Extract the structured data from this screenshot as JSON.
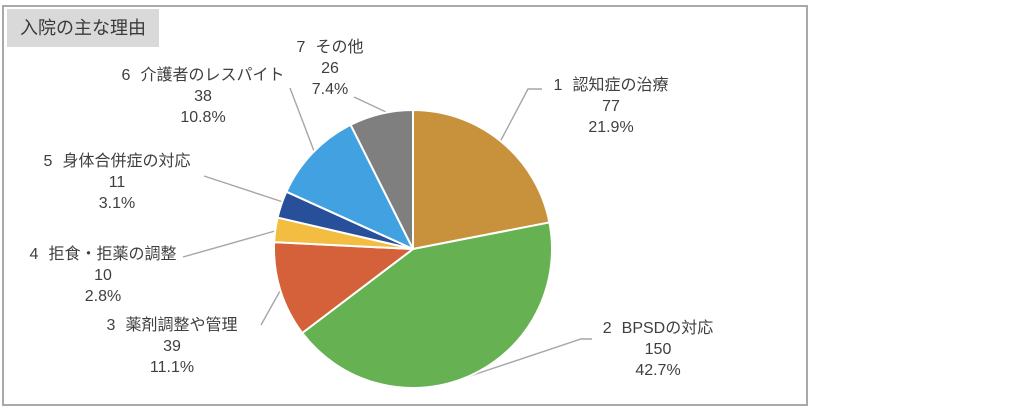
{
  "theme": {
    "panel_border": "#a9a9a9",
    "title_bg": "#d9d9d9",
    "leader_line_color": "#a6a6a6",
    "label_color": "#3f3f3f",
    "slice_stroke": "#ffffff"
  },
  "chart_data": {
    "type": "pie",
    "title": "入院の主な理由",
    "direction": "clockwise",
    "start_angle_deg": 0,
    "legend_position": "none (leader-line data labels)",
    "slices": [
      {
        "index": "1",
        "label": "認知症の治療",
        "value": 77,
        "percent": "21.9%",
        "color": "#C8913B"
      },
      {
        "index": "2",
        "label": "BPSDの対応",
        "value": 150,
        "percent": "42.7%",
        "color": "#66B152"
      },
      {
        "index": "3",
        "label": "薬剤調整や管理",
        "value": 39,
        "percent": "11.1%",
        "color": "#D5613A"
      },
      {
        "index": "4",
        "label": "拒食・拒薬の調整",
        "value": 10,
        "percent": "2.8%",
        "color": "#F3BD41"
      },
      {
        "index": "5",
        "label": "身体合併症の対応",
        "value": 11,
        "percent": "3.1%",
        "color": "#274F9A"
      },
      {
        "index": "6",
        "label": "介護者のレスパイト",
        "value": 38,
        "percent": "10.8%",
        "color": "#41A1E1"
      },
      {
        "index": "7",
        "label": "その他",
        "value": 26,
        "percent": "7.4%",
        "color": "#7F7F7F"
      }
    ]
  }
}
